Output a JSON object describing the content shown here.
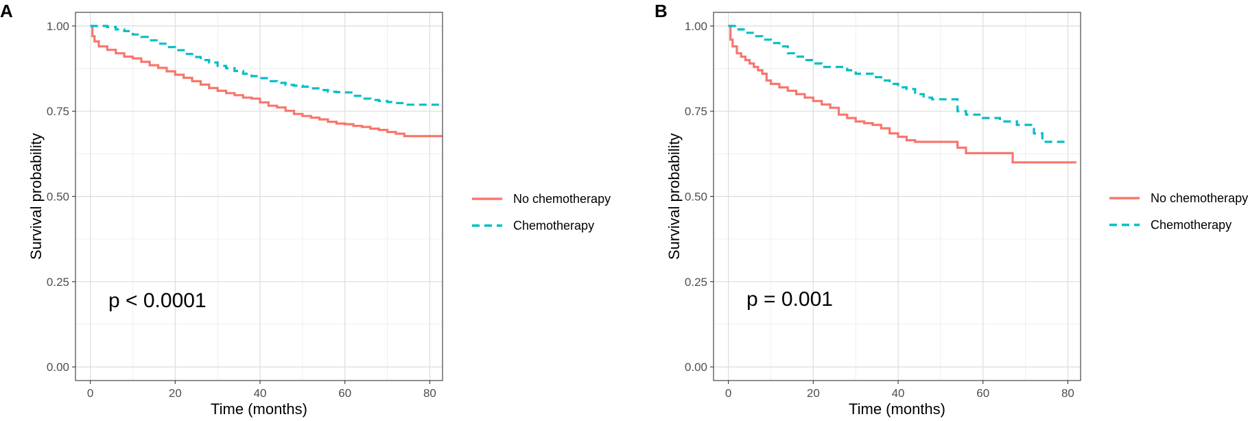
{
  "chart_data": [
    {
      "type": "line",
      "panel_label": "A",
      "xlabel": "Time (months)",
      "ylabel": "Survival probability",
      "xlim": [
        -3.5,
        83
      ],
      "ylim": [
        -0.04,
        1.04
      ],
      "x_ticks": [
        0,
        20,
        40,
        60,
        80
      ],
      "x_tick_labels": [
        "0",
        "20",
        "40",
        "60",
        "80"
      ],
      "y_ticks": [
        0,
        0.25,
        0.5,
        0.75,
        1
      ],
      "y_tick_labels": [
        "0.00",
        "0.25",
        "0.50",
        "0.75",
        "1.00"
      ],
      "grid": true,
      "legend_position": "right",
      "annotation": "p < 0.0001",
      "series": [
        {
          "name": "No chemotherapy",
          "color": "#F8766D",
          "dash": "solid",
          "x": [
            0,
            0.5,
            1,
            2,
            4,
            6,
            8,
            10,
            12,
            14,
            16,
            18,
            20,
            22,
            24,
            26,
            28,
            30,
            32,
            34,
            36,
            38,
            40,
            42,
            44,
            46,
            48,
            50,
            52,
            54,
            56,
            58,
            60,
            62,
            64,
            66,
            68,
            70,
            72,
            74,
            76,
            78,
            80,
            83
          ],
          "y": [
            1.0,
            0.97,
            0.955,
            0.94,
            0.93,
            0.92,
            0.91,
            0.905,
            0.895,
            0.885,
            0.877,
            0.867,
            0.857,
            0.848,
            0.838,
            0.828,
            0.818,
            0.81,
            0.803,
            0.797,
            0.79,
            0.787,
            0.776,
            0.766,
            0.761,
            0.751,
            0.742,
            0.736,
            0.731,
            0.726,
            0.719,
            0.714,
            0.712,
            0.707,
            0.704,
            0.699,
            0.695,
            0.689,
            0.684,
            0.677,
            0.677,
            0.677,
            0.677,
            0.677
          ]
        },
        {
          "name": "Chemotherapy",
          "color": "#00BFC4",
          "dash": "dashed",
          "x": [
            0,
            2,
            4,
            6,
            8,
            10,
            12,
            14,
            16,
            18,
            20,
            22,
            24,
            26,
            28,
            30,
            32,
            34,
            36,
            38,
            40,
            42,
            44,
            46,
            48,
            50,
            52,
            54,
            56,
            58,
            60,
            62,
            64,
            66,
            68,
            70,
            72,
            74,
            76,
            78,
            80,
            83
          ],
          "y": [
            1.0,
            1.0,
            0.997,
            0.99,
            0.985,
            0.975,
            0.968,
            0.958,
            0.948,
            0.938,
            0.929,
            0.918,
            0.909,
            0.9,
            0.893,
            0.883,
            0.876,
            0.868,
            0.86,
            0.853,
            0.847,
            0.838,
            0.833,
            0.827,
            0.825,
            0.822,
            0.817,
            0.812,
            0.807,
            0.806,
            0.805,
            0.795,
            0.787,
            0.783,
            0.78,
            0.777,
            0.774,
            0.769,
            0.769,
            0.769,
            0.769,
            0.769
          ]
        }
      ]
    },
    {
      "type": "line",
      "panel_label": "B",
      "xlabel": "Time (months)",
      "ylabel": "Survival probability",
      "xlim": [
        -3.5,
        83
      ],
      "ylim": [
        -0.04,
        1.04
      ],
      "x_ticks": [
        0,
        20,
        40,
        60,
        80
      ],
      "x_tick_labels": [
        "0",
        "20",
        "40",
        "60",
        "80"
      ],
      "y_ticks": [
        0,
        0.25,
        0.5,
        0.75,
        1
      ],
      "y_tick_labels": [
        "0.00",
        "0.25",
        "0.50",
        "0.75",
        "1.00"
      ],
      "grid": true,
      "legend_position": "right",
      "annotation": "p = 0.001",
      "series": [
        {
          "name": "No chemotherapy",
          "color": "#F8766D",
          "dash": "solid",
          "x": [
            0,
            0.5,
            1,
            2,
            3,
            4,
            5,
            6,
            7,
            8,
            9,
            10,
            12,
            14,
            16,
            18,
            20,
            22,
            24,
            26,
            28,
            30,
            32,
            34,
            36,
            38,
            40,
            42,
            44,
            46,
            48,
            50,
            52,
            54,
            56,
            60,
            64,
            67,
            70,
            75,
            80,
            82
          ],
          "y": [
            1.0,
            0.96,
            0.94,
            0.92,
            0.91,
            0.9,
            0.89,
            0.88,
            0.87,
            0.86,
            0.84,
            0.83,
            0.82,
            0.81,
            0.8,
            0.79,
            0.78,
            0.77,
            0.76,
            0.74,
            0.73,
            0.72,
            0.715,
            0.71,
            0.7,
            0.685,
            0.675,
            0.665,
            0.66,
            0.66,
            0.66,
            0.66,
            0.66,
            0.643,
            0.627,
            0.627,
            0.627,
            0.6,
            0.6,
            0.6,
            0.6,
            0.6
          ]
        },
        {
          "name": "Chemotherapy",
          "color": "#00BFC4",
          "dash": "dashed",
          "x": [
            0,
            1,
            2,
            4,
            6,
            8,
            10,
            12,
            14,
            16,
            18,
            20,
            22,
            24,
            26,
            28,
            30,
            34,
            36,
            38,
            40,
            42,
            44,
            46,
            48,
            50,
            52,
            54,
            56,
            60,
            62,
            64,
            68,
            72,
            74,
            80
          ],
          "y": [
            1.0,
            1.0,
            0.99,
            0.98,
            0.97,
            0.96,
            0.95,
            0.94,
            0.92,
            0.91,
            0.9,
            0.89,
            0.88,
            0.88,
            0.88,
            0.87,
            0.86,
            0.85,
            0.84,
            0.83,
            0.82,
            0.815,
            0.8,
            0.79,
            0.785,
            0.785,
            0.785,
            0.75,
            0.74,
            0.73,
            0.73,
            0.72,
            0.71,
            0.685,
            0.66,
            0.66
          ]
        }
      ]
    }
  ]
}
